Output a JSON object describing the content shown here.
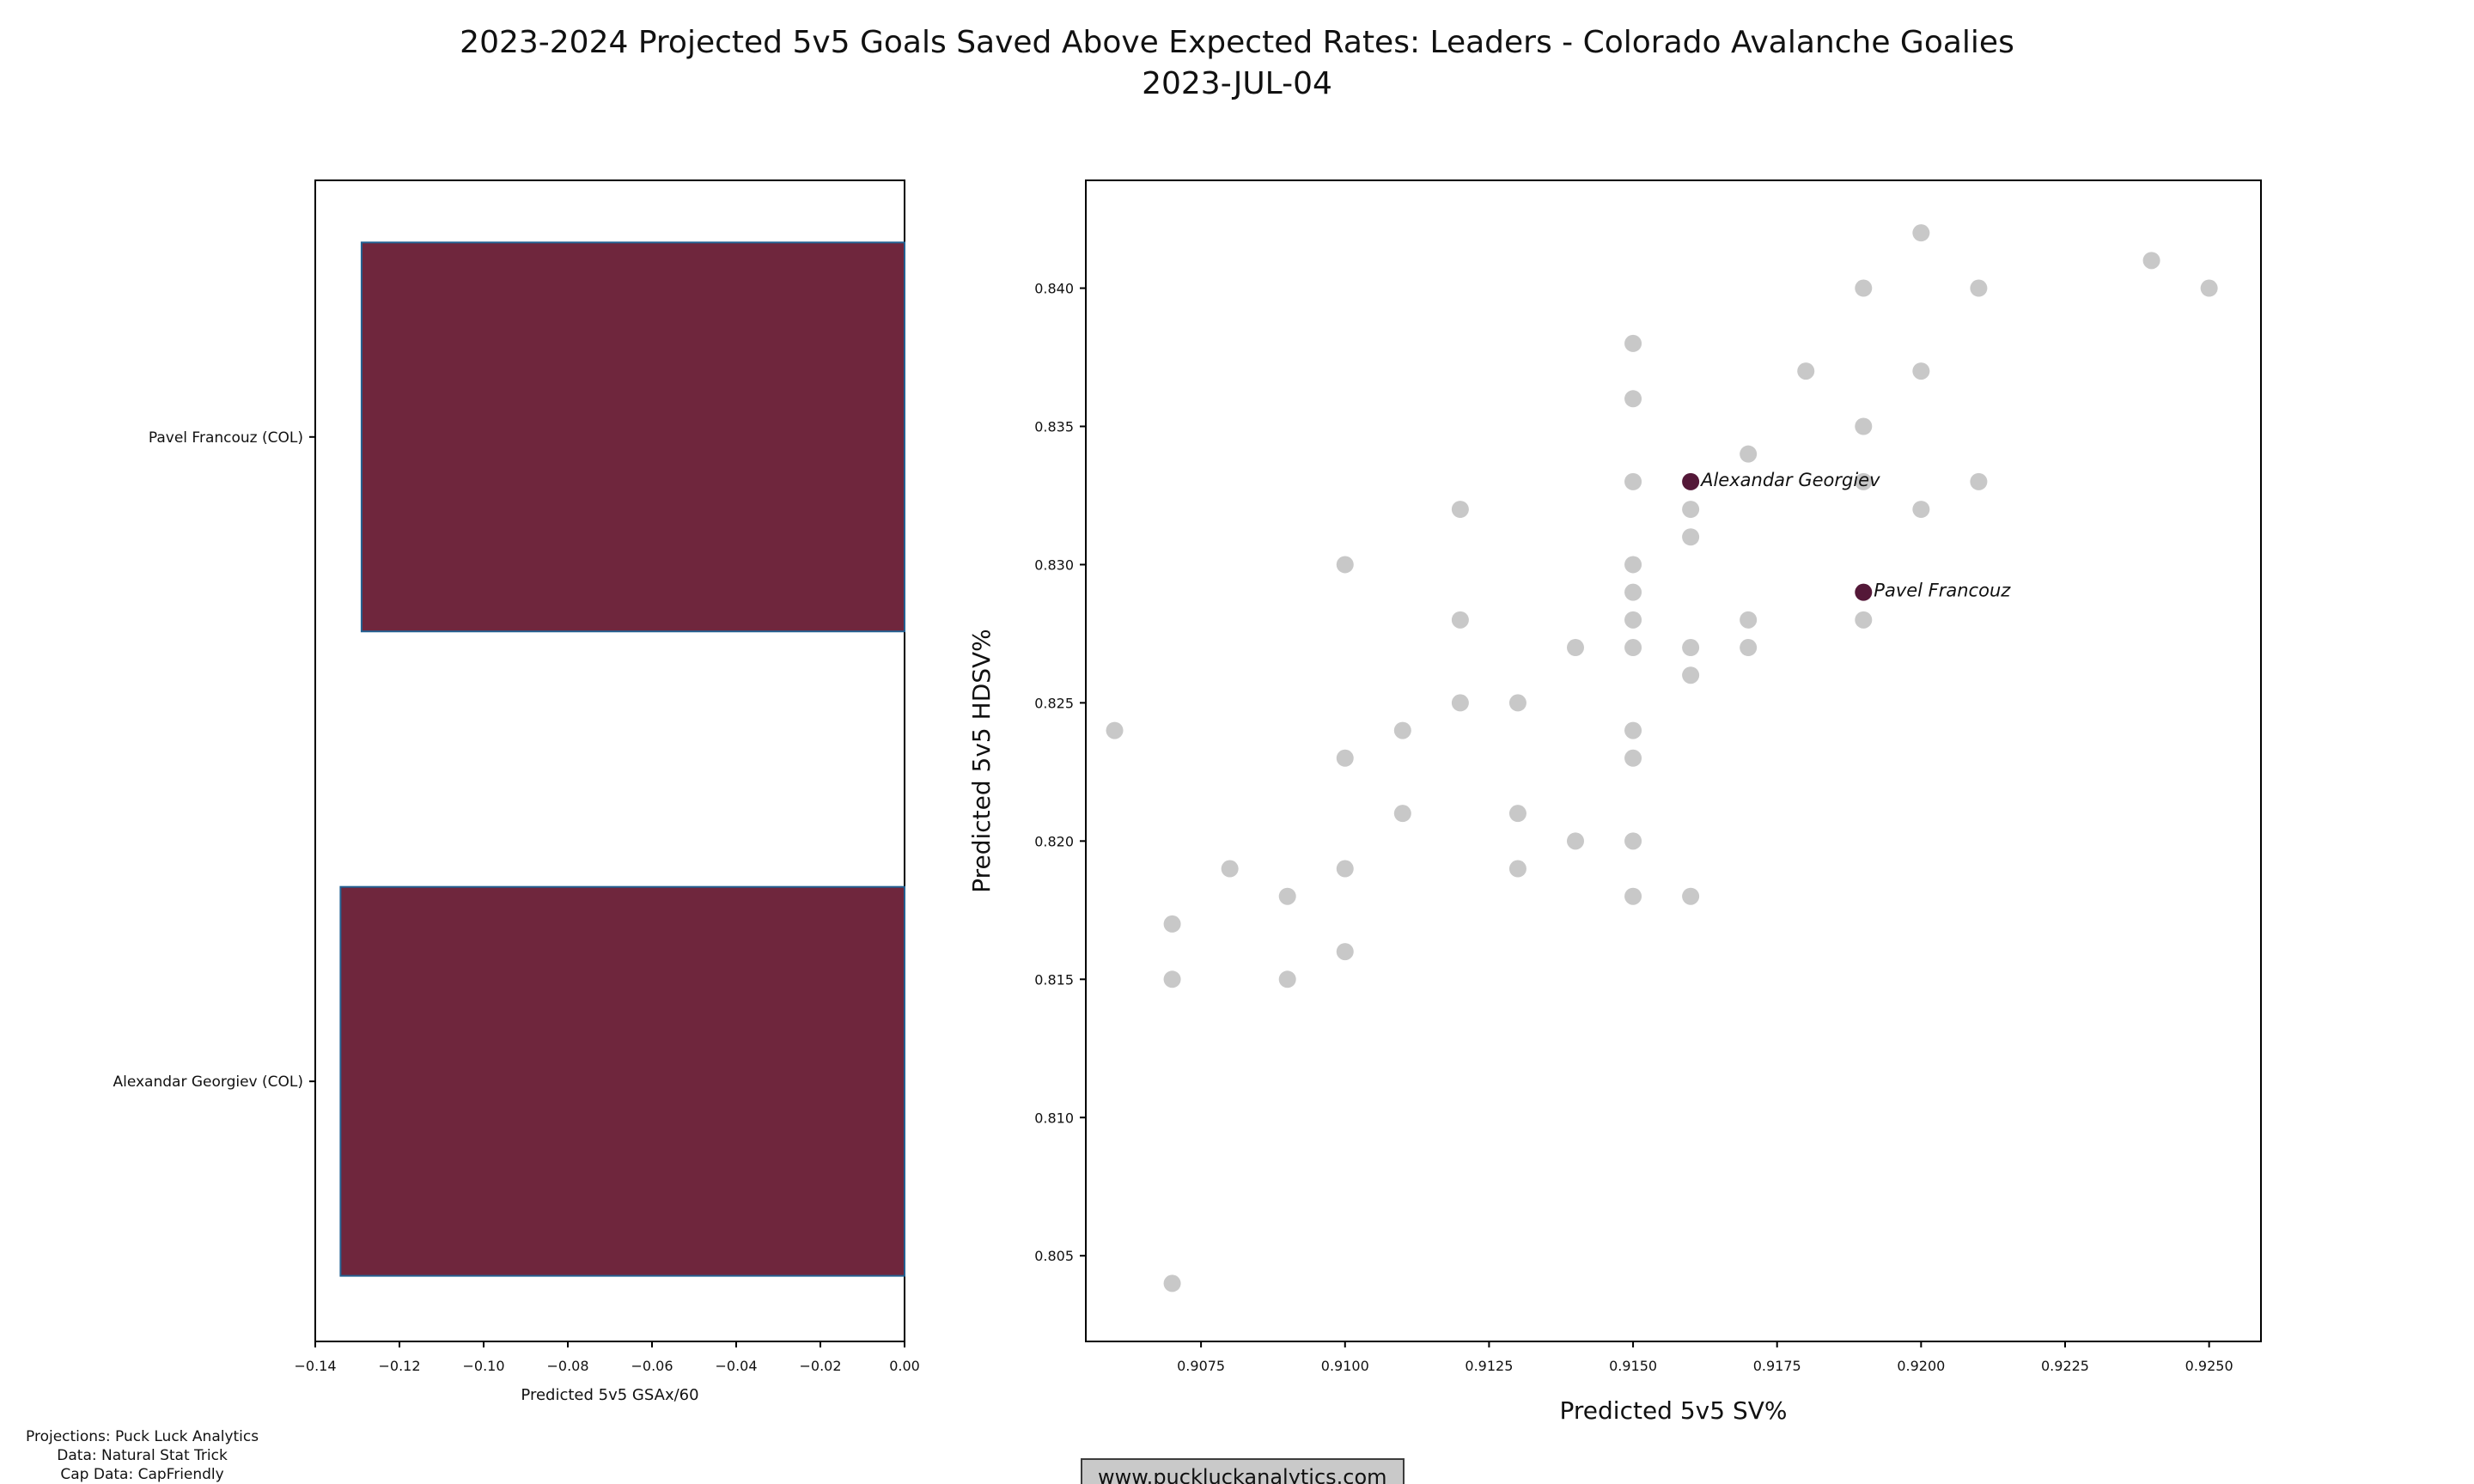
{
  "header": {
    "title": "2023-2024 Projected 5v5 Goals Saved Above Expected Rates: Leaders - Colorado Avalanche Goalies",
    "subtitle": "2023-JUL-04"
  },
  "footer": {
    "credits": [
      "Projections: Puck Luck Analytics",
      "Data: Natural Stat Trick",
      "Cap Data: CapFriendly"
    ],
    "website": "www.puckluckanalytics.com"
  },
  "colors": {
    "bar_fill": "#6F263D",
    "bar_edge": "#236192",
    "gray_point": "#c8c8c8",
    "highlight_point": "#541838",
    "axis": "#000000",
    "text": "#111111"
  },
  "chart_data": [
    {
      "type": "bar",
      "orientation": "horizontal",
      "categories": [
        "Pavel Francouz (COL)",
        "Alexandar Georgiev (COL)"
      ],
      "values": [
        -0.129,
        -0.134
      ],
      "xlabel": "Predicted 5v5 GSAx/60",
      "xlim": [
        -0.14,
        0.0
      ],
      "xticks": [
        -0.14,
        -0.12,
        -0.1,
        -0.08,
        -0.06,
        -0.04,
        -0.02,
        0.0
      ],
      "grid": false
    },
    {
      "type": "scatter",
      "xlabel": "Predicted 5v5 SV%",
      "ylabel": "Predicted 5v5 HDSV%",
      "xlim": [
        0.9055,
        0.9259
      ],
      "ylim": [
        0.8019,
        0.8439
      ],
      "xticks": [
        0.9075,
        0.91,
        0.9125,
        0.915,
        0.9175,
        0.92,
        0.9225,
        0.925
      ],
      "yticks": [
        0.805,
        0.81,
        0.815,
        0.82,
        0.825,
        0.83,
        0.835,
        0.84
      ],
      "grid": false,
      "points": [
        [
          0.907,
          0.804
        ],
        [
          0.907,
          0.815
        ],
        [
          0.909,
          0.815
        ],
        [
          0.91,
          0.816
        ],
        [
          0.907,
          0.817
        ],
        [
          0.909,
          0.818
        ],
        [
          0.915,
          0.818
        ],
        [
          0.916,
          0.818
        ],
        [
          0.908,
          0.819
        ],
        [
          0.91,
          0.819
        ],
        [
          0.913,
          0.819
        ],
        [
          0.914,
          0.82
        ],
        [
          0.915,
          0.82
        ],
        [
          0.911,
          0.821
        ],
        [
          0.913,
          0.821
        ],
        [
          0.91,
          0.823
        ],
        [
          0.915,
          0.823
        ],
        [
          0.906,
          0.824
        ],
        [
          0.911,
          0.824
        ],
        [
          0.915,
          0.824
        ],
        [
          0.912,
          0.825
        ],
        [
          0.913,
          0.825
        ],
        [
          0.916,
          0.826
        ],
        [
          0.914,
          0.827
        ],
        [
          0.915,
          0.827
        ],
        [
          0.916,
          0.827
        ],
        [
          0.917,
          0.827
        ],
        [
          0.912,
          0.828
        ],
        [
          0.915,
          0.828
        ],
        [
          0.917,
          0.828
        ],
        [
          0.919,
          0.828
        ],
        [
          0.915,
          0.829
        ],
        [
          0.91,
          0.83
        ],
        [
          0.915,
          0.83
        ],
        [
          0.916,
          0.831
        ],
        [
          0.912,
          0.832
        ],
        [
          0.916,
          0.832
        ],
        [
          0.92,
          0.832
        ],
        [
          0.915,
          0.833
        ],
        [
          0.919,
          0.833
        ],
        [
          0.921,
          0.833
        ],
        [
          0.917,
          0.834
        ],
        [
          0.919,
          0.835
        ],
        [
          0.915,
          0.836
        ],
        [
          0.918,
          0.837
        ],
        [
          0.92,
          0.837
        ],
        [
          0.915,
          0.838
        ],
        [
          0.919,
          0.84
        ],
        [
          0.921,
          0.84
        ],
        [
          0.925,
          0.84
        ],
        [
          0.924,
          0.841
        ],
        [
          0.92,
          0.842
        ]
      ],
      "highlighted": [
        {
          "label": "Alexandar Georgiev",
          "x": 0.916,
          "y": 0.833
        },
        {
          "label": "Pavel Francouz",
          "x": 0.919,
          "y": 0.829
        }
      ]
    }
  ]
}
